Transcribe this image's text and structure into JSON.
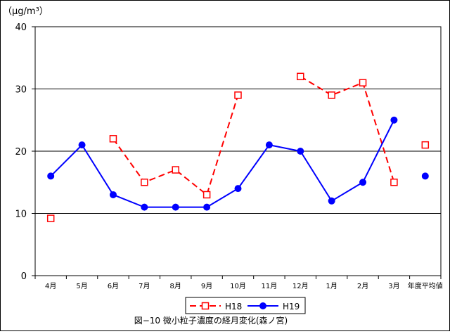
{
  "chart_data": {
    "type": "line",
    "y_unit": "（μg/m³）",
    "categories": [
      "4月",
      "5月",
      "6月",
      "7月",
      "8月",
      "9月",
      "10月",
      "11月",
      "12月",
      "1月",
      "2月",
      "3月",
      "年度平均値"
    ],
    "ylim": [
      0,
      40
    ],
    "yticks": [
      0,
      10,
      20,
      30,
      40
    ],
    "grid": true,
    "legend_position": "bottom",
    "series": [
      {
        "name": "H18",
        "color": "#ff0000",
        "line_style": "dashed",
        "marker": "open-square",
        "segments": [
          [
            2,
            3,
            4,
            5,
            6
          ],
          [
            8,
            9,
            10,
            11
          ]
        ],
        "values": [
          9.2,
          null,
          22,
          15,
          17,
          13,
          29,
          null,
          32,
          29,
          31,
          15,
          21
        ]
      },
      {
        "name": "H19",
        "color": "#0000ff",
        "line_style": "solid",
        "marker": "filled-circle",
        "segments": [
          [
            0,
            1,
            2,
            3,
            4,
            5,
            6,
            7,
            8,
            9,
            10,
            11
          ]
        ],
        "values": [
          16,
          21,
          13,
          11,
          11,
          11,
          14,
          21,
          20,
          12,
          15,
          25,
          16
        ]
      }
    ],
    "caption": "図−10  微小粒子濃度の経月変化(森ノ宮)"
  }
}
